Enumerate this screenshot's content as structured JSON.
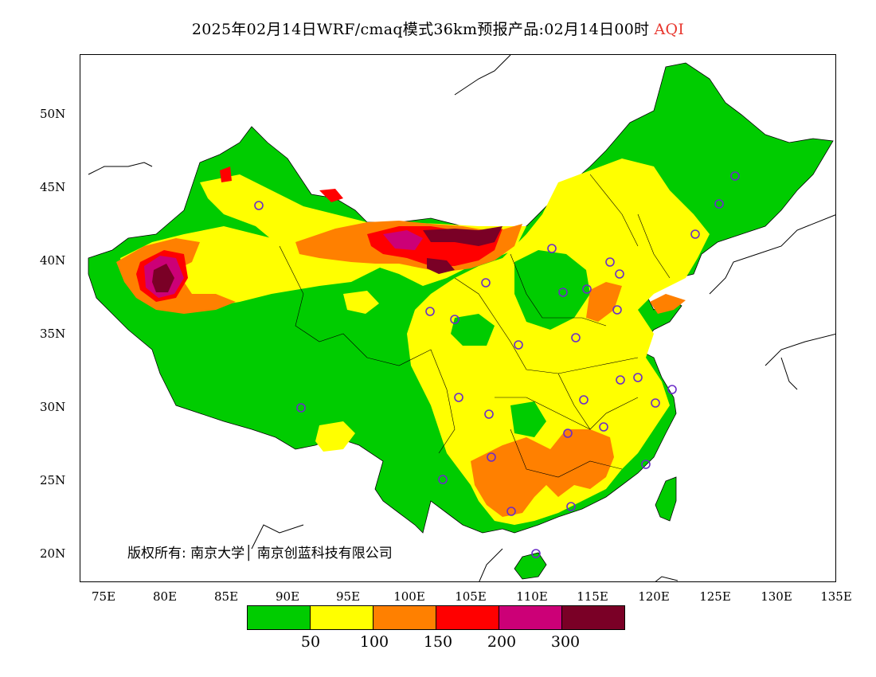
{
  "title": {
    "text": "2025年02月14日WRF/cmaq模式36km预报产品:02月14日00时",
    "variable": "AQI",
    "variable_color": "#e8372e"
  },
  "lat_labels": [
    "50N",
    "45N",
    "40N",
    "35N",
    "30N",
    "25N",
    "20N"
  ],
  "lon_labels": [
    "75E",
    "80E",
    "85E",
    "90E",
    "95E",
    "100E",
    "105E",
    "110E",
    "115E",
    "120E",
    "125E",
    "130E",
    "135E"
  ],
  "copyright": "版权所有: 南京大学│ 南京创蓝科技有限公司",
  "legend": {
    "colors": [
      "#00cc00",
      "#ffff00",
      "#ff8000",
      "#ff0000",
      "#cc0077",
      "#7a0026"
    ],
    "labels": [
      "50",
      "100",
      "150",
      "200",
      "300"
    ]
  },
  "colors": {
    "good": "#00cc00",
    "moderate": "#ffff00",
    "usg": "#ff8000",
    "unhealthy": "#ff0000",
    "very_unhealthy": "#cc0077",
    "hazardous": "#7a0026",
    "station_marker": "#6a2cc8"
  }
}
